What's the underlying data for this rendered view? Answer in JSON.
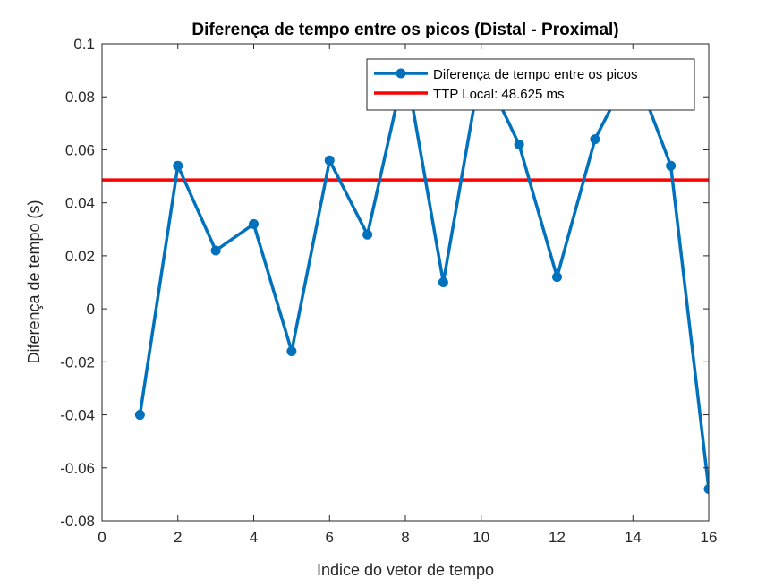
{
  "chart_data": {
    "type": "line",
    "title": "Diferença de tempo entre os picos (Distal - Proximal)",
    "xlabel": "Indice do vetor de tempo",
    "ylabel": "Diferença de tempo (s)",
    "xlim": [
      0,
      16
    ],
    "ylim": [
      -0.08,
      0.1
    ],
    "xticks": [
      0,
      2,
      4,
      6,
      8,
      10,
      12,
      14,
      16
    ],
    "xtick_labels": [
      "0",
      "2",
      "4",
      "6",
      "8",
      "10",
      "12",
      "14",
      "16"
    ],
    "yticks": [
      -0.08,
      -0.06,
      -0.04,
      -0.02,
      0,
      0.02,
      0.04,
      0.06,
      0.08,
      0.1
    ],
    "ytick_labels": [
      "-0.08",
      "-0.06",
      "-0.04",
      "-0.02",
      "0",
      "0.02",
      "0.04",
      "0.06",
      "0.08",
      "0.1"
    ],
    "grid": false,
    "legend_position": "top-right",
    "series": [
      {
        "name": "Diferença de tempo entre os picos",
        "color": "#0072BD",
        "marker": "circle",
        "x": [
          1,
          2,
          3,
          4,
          5,
          6,
          7,
          8,
          9,
          10,
          11,
          12,
          13,
          14,
          15,
          16
        ],
        "y": [
          -0.04,
          0.054,
          0.022,
          0.032,
          -0.016,
          0.056,
          0.028,
          0.092,
          0.01,
          0.092,
          0.062,
          0.012,
          0.064,
          0.092,
          0.054,
          -0.068
        ]
      }
    ],
    "reference_lines": [
      {
        "name": "TTP Local: 48.625 ms",
        "color": "#FF0000",
        "y": 0.048625
      }
    ]
  }
}
